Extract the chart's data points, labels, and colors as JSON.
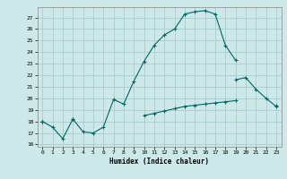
{
  "xlabel": "Humidex (Indice chaleur)",
  "background_color": "#cce8e8",
  "grid_color": "#aacccc",
  "line_color": "#006666",
  "x_values": [
    0,
    1,
    2,
    3,
    4,
    5,
    6,
    7,
    8,
    9,
    10,
    11,
    12,
    13,
    14,
    15,
    16,
    17,
    18,
    19,
    20,
    21,
    22,
    23
  ],
  "curve1": [
    18.0,
    17.5,
    16.5,
    18.2,
    17.1,
    17.0,
    17.5,
    19.9,
    19.5,
    21.5,
    23.2,
    24.6,
    25.5,
    26.0,
    27.3,
    27.5,
    27.6,
    27.3,
    24.6,
    23.3,
    null,
    null,
    null,
    null
  ],
  "curve2": [
    18.0,
    null,
    null,
    18.2,
    null,
    null,
    null,
    null,
    null,
    null,
    null,
    null,
    null,
    null,
    null,
    null,
    null,
    null,
    null,
    21.6,
    21.8,
    20.8,
    20.0,
    19.3
  ],
  "curve3": [
    18.0,
    null,
    null,
    null,
    null,
    null,
    null,
    null,
    null,
    null,
    18.5,
    18.7,
    18.9,
    19.1,
    19.3,
    19.4,
    19.5,
    19.6,
    19.7,
    19.8,
    null,
    null,
    null,
    19.4
  ],
  "xlim": [
    -0.5,
    23.5
  ],
  "ylim": [
    15.8,
    27.9
  ],
  "yticks": [
    16,
    17,
    18,
    19,
    20,
    21,
    22,
    23,
    24,
    25,
    26,
    27
  ],
  "xticks": [
    0,
    1,
    2,
    3,
    4,
    5,
    6,
    7,
    8,
    9,
    10,
    11,
    12,
    13,
    14,
    15,
    16,
    17,
    18,
    19,
    20,
    21,
    22,
    23
  ]
}
